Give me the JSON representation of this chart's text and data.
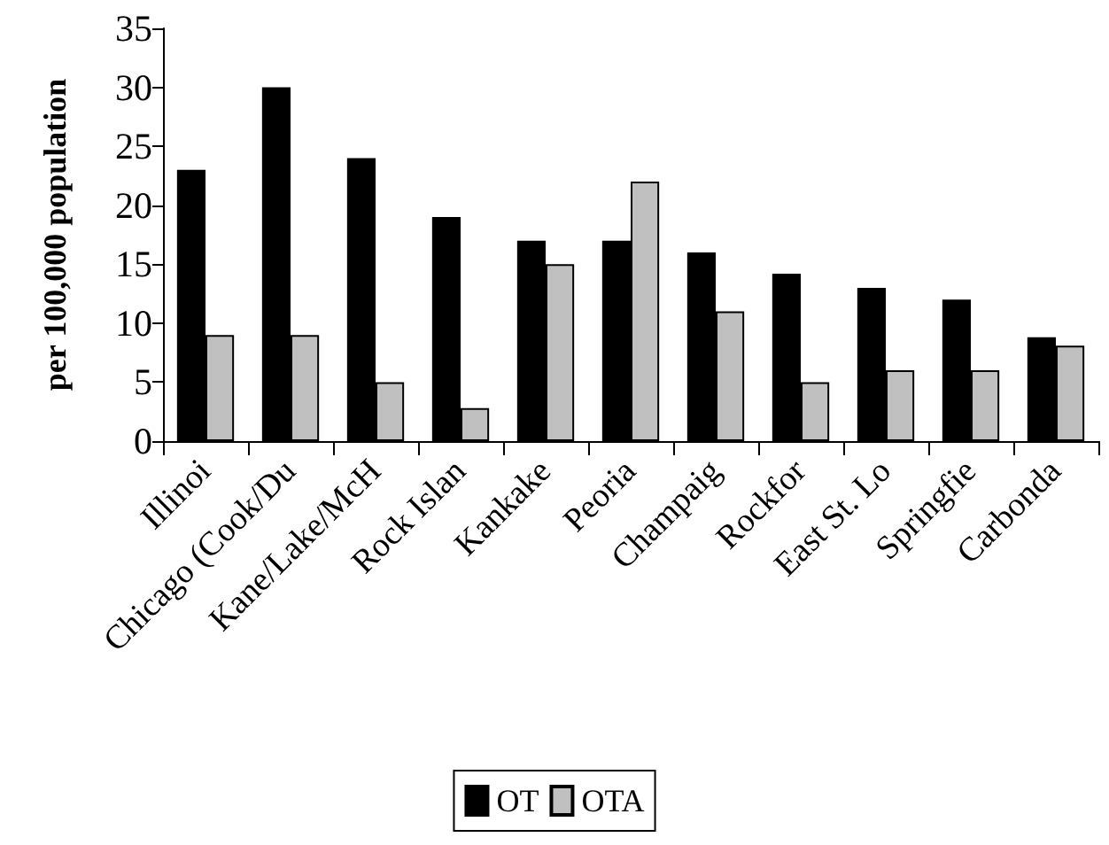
{
  "chart_data": {
    "type": "bar",
    "ylabel": "per 100,000 population",
    "categories": [
      "Illinoi",
      "Chicago (Cook/Du",
      "Kane/Lake/McH",
      "Rock Islan",
      "Kankake",
      "Peoria",
      "Champaig",
      "Rockfor",
      "East St. Lo",
      "Springfie",
      "Carbonda"
    ],
    "series": [
      {
        "name": "OT",
        "color": "#000000",
        "values": [
          23,
          30,
          24,
          19,
          17,
          17,
          16,
          14.2,
          13,
          12,
          8.8
        ]
      },
      {
        "name": "OTA",
        "color": "#c0c0c0",
        "values": [
          9,
          9,
          5,
          2.8,
          15,
          22,
          11,
          5,
          6,
          6,
          8.1
        ]
      }
    ],
    "ylim": [
      0,
      35
    ],
    "yticks": [
      0,
      5,
      10,
      15,
      20,
      25,
      30,
      35
    ],
    "grid": false,
    "legend": "bottom"
  }
}
